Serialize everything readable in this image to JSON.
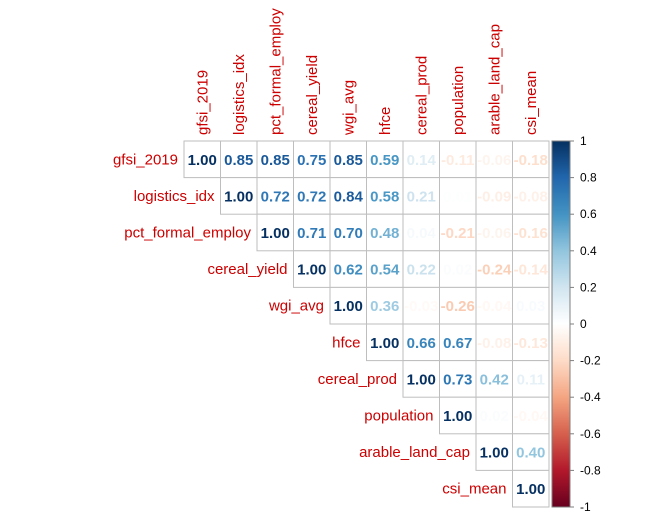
{
  "chart_data": {
    "type": "heatmap",
    "variables": [
      "gfsi_2019",
      "logistics_idx",
      "pct_formal_employ",
      "cereal_yield",
      "wgi_avg",
      "hfce",
      "cereal_prod",
      "population",
      "arable_land_cap",
      "csi_mean"
    ],
    "matrix_upper": [
      [
        1.0,
        0.85,
        0.85,
        0.75,
        0.85,
        0.59,
        0.14,
        -0.11,
        -0.06,
        -0.18
      ],
      [
        null,
        1.0,
        0.72,
        0.72,
        0.84,
        0.58,
        0.21,
        0.01,
        -0.09,
        -0.08
      ],
      [
        null,
        null,
        1.0,
        0.71,
        0.7,
        0.48,
        0.04,
        -0.21,
        -0.06,
        -0.16
      ],
      [
        null,
        null,
        null,
        1.0,
        0.62,
        0.54,
        0.22,
        0.02,
        -0.24,
        -0.14
      ],
      [
        null,
        null,
        null,
        null,
        1.0,
        0.36,
        -0.03,
        -0.26,
        -0.04,
        0.03
      ],
      [
        null,
        null,
        null,
        null,
        null,
        1.0,
        0.66,
        0.67,
        -0.08,
        -0.13
      ],
      [
        null,
        null,
        null,
        null,
        null,
        null,
        1.0,
        0.73,
        0.42,
        0.11
      ],
      [
        null,
        null,
        null,
        null,
        null,
        null,
        null,
        1.0,
        0.02,
        -0.04
      ],
      [
        null,
        null,
        null,
        null,
        null,
        null,
        null,
        null,
        1.0,
        0.4
      ],
      [
        null,
        null,
        null,
        null,
        null,
        null,
        null,
        null,
        null,
        1.0
      ]
    ],
    "color_scale": {
      "min": -1,
      "max": 1,
      "low_color": "#67001f",
      "mid_color": "#ffffff",
      "high_color": "#053061"
    },
    "legend_ticks": [
      "1",
      "0.8",
      "0.6",
      "0.4",
      "0.2",
      "0",
      "-0.2",
      "-0.4",
      "-0.6",
      "-0.8",
      "-1"
    ],
    "legend_position": "right",
    "label_color": "#cc0000"
  }
}
